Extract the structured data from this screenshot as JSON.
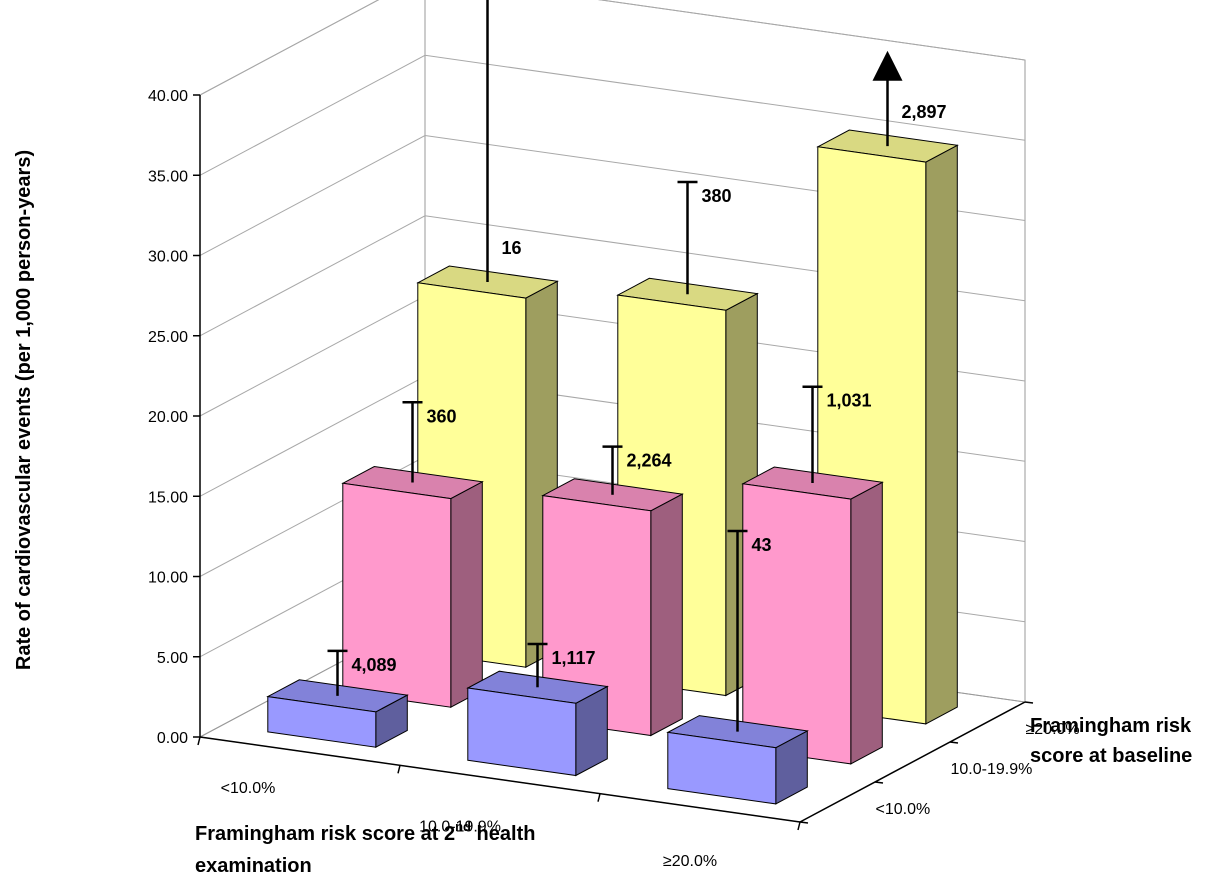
{
  "chart_data": {
    "type": "bar",
    "style": "3d-clustered",
    "ylabel": "Rate of cardiovascular events (per 1,000 person-years)",
    "xlabel_line1": "Framingham risk score at 2",
    "xlabel_sup": "nd",
    "xlabel_line1_tail": " health",
    "xlabel_line2": "examination",
    "zlabel_line1": "Framingham risk",
    "zlabel_line2": "score at baseline",
    "ylim": [
      0,
      40
    ],
    "yticks": [
      "0.00",
      "5.00",
      "10.00",
      "15.00",
      "20.00",
      "25.00",
      "30.00",
      "35.00",
      "40.00"
    ],
    "x_categories": [
      "<10.0%",
      "10.0-19.9%",
      "≥20.0%"
    ],
    "z_categories": [
      "<10.0%",
      "10.0-19.9%",
      "≥20.0%"
    ],
    "series": [
      {
        "color": "#9999ff",
        "values": [
          2.2,
          4.5,
          3.5
        ],
        "error_upper": [
          5.0,
          7.2,
          16.0
        ],
        "labels": [
          "4,089",
          "1,117",
          "43"
        ]
      },
      {
        "color": "#ff99cc",
        "values": [
          13.0,
          14.0,
          16.5
        ],
        "error_upper": [
          18.0,
          17.0,
          22.5
        ],
        "labels": [
          "360",
          "2,264",
          "1,031"
        ]
      },
      {
        "color": "#ffff99",
        "values": [
          23.0,
          24.0,
          35.0
        ],
        "error_upper": [
          44.0,
          31.0,
          40.5
        ],
        "labels": [
          "16",
          "380",
          "2,897"
        ]
      }
    ],
    "grid": true
  }
}
